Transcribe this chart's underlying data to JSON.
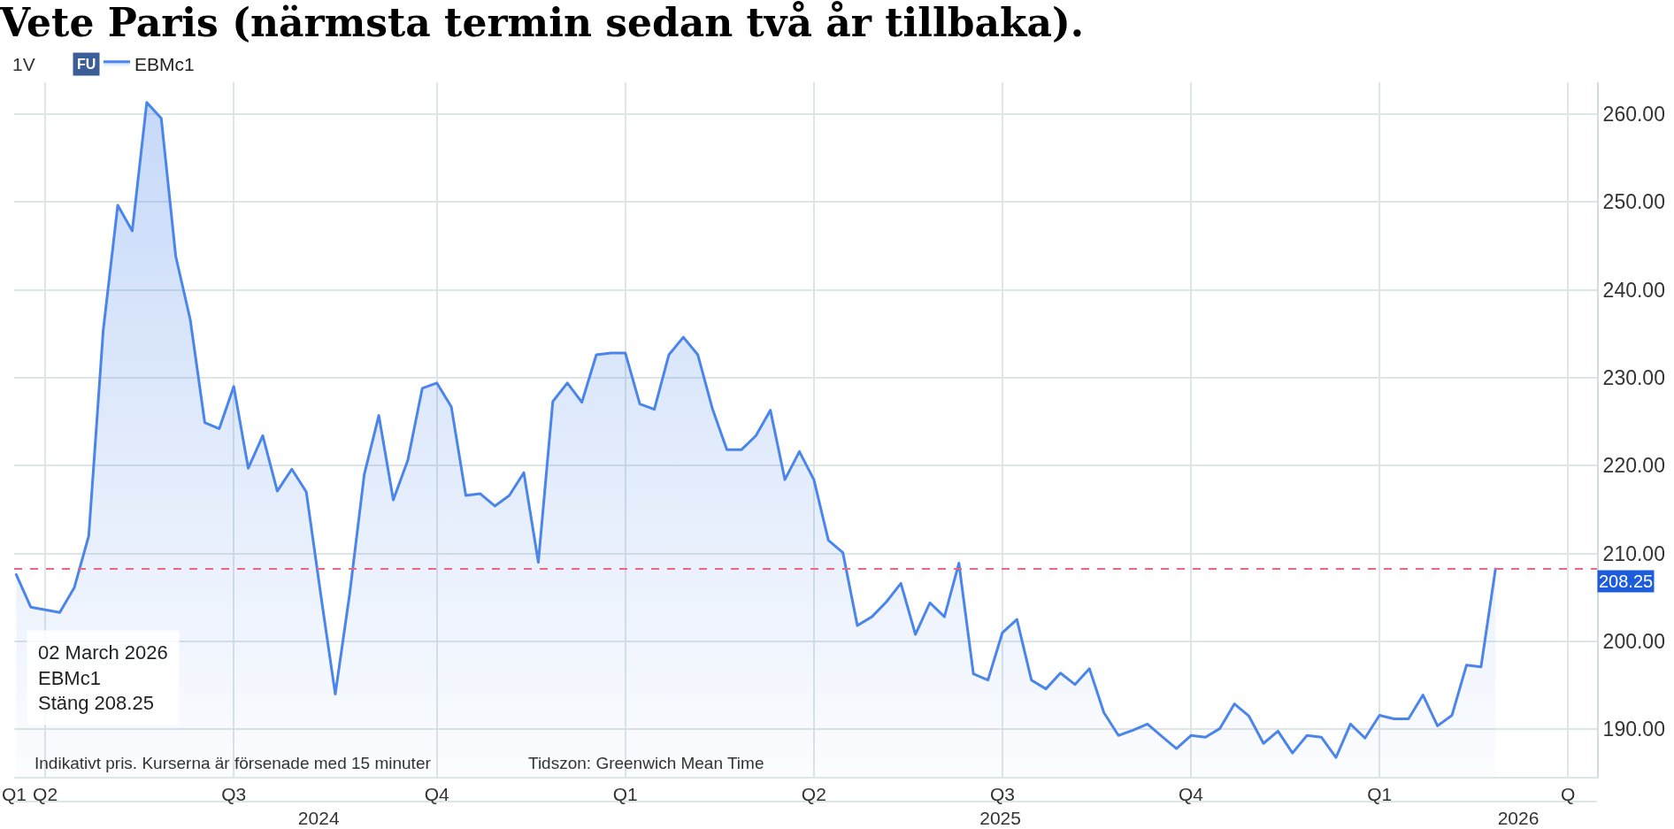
{
  "chart_data": {
    "type": "area",
    "title": "Vete Paris (närmsta termin sedan två år tillbaka).",
    "x": [
      "2024-03-18",
      "2024-03-25",
      "2024-04-01",
      "2024-04-08",
      "2024-04-15",
      "2024-04-22",
      "2024-04-29",
      "2024-05-06",
      "2024-05-13",
      "2024-05-20",
      "2024-05-27",
      "2024-06-03",
      "2024-06-10",
      "2024-06-17",
      "2024-06-24",
      "2024-07-01",
      "2024-07-08",
      "2024-07-15",
      "2024-07-22",
      "2024-07-29",
      "2024-08-05",
      "2024-08-12",
      "2024-08-19",
      "2024-08-26",
      "2024-09-02",
      "2024-09-09",
      "2024-09-16",
      "2024-09-23",
      "2024-09-30",
      "2024-10-07",
      "2024-10-14",
      "2024-10-21",
      "2024-10-28",
      "2024-11-04",
      "2024-11-11",
      "2024-11-18",
      "2024-11-25",
      "2024-12-02",
      "2024-12-09",
      "2024-12-16",
      "2024-12-23",
      "2024-12-30",
      "2025-01-06",
      "2025-01-13",
      "2025-01-20",
      "2025-01-27",
      "2025-02-03",
      "2025-02-10",
      "2025-02-17",
      "2025-02-24",
      "2025-03-03",
      "2025-03-10",
      "2025-03-17",
      "2025-03-24",
      "2025-03-31",
      "2025-04-07",
      "2025-04-14",
      "2025-04-21",
      "2025-04-28",
      "2025-05-05",
      "2025-05-12",
      "2025-05-19",
      "2025-05-26",
      "2025-06-02",
      "2025-06-09",
      "2025-06-16",
      "2025-06-23",
      "2025-06-30",
      "2025-07-07",
      "2025-07-14",
      "2025-07-21",
      "2025-07-28",
      "2025-08-04",
      "2025-08-11",
      "2025-08-18",
      "2025-08-25",
      "2025-09-01",
      "2025-09-08",
      "2025-09-15",
      "2025-09-22",
      "2025-09-29",
      "2025-10-06",
      "2025-10-13",
      "2025-10-20",
      "2025-10-27",
      "2025-11-03",
      "2025-11-10",
      "2025-11-17",
      "2025-11-24",
      "2025-12-01",
      "2025-12-08",
      "2025-12-15",
      "2025-12-22",
      "2025-12-29",
      "2026-01-05",
      "2026-01-12",
      "2026-01-19",
      "2026-01-26",
      "2026-02-02",
      "2026-02-09",
      "2026-02-16",
      "2026-02-23",
      "2026-03-02"
    ],
    "series": [
      {
        "name": "EBMc1",
        "color": "#4a85ec",
        "values": [
          207.6,
          203.9,
          203.6,
          203.3,
          206.1,
          212.0,
          235.4,
          249.6,
          246.7,
          261.3,
          259.5,
          243.8,
          236.6,
          224.9,
          224.2,
          229.0,
          219.7,
          223.4,
          217.1,
          219.6,
          217.0,
          205.3,
          194.0,
          205.5,
          219.0,
          225.7,
          216.1,
          220.6,
          228.8,
          229.4,
          226.7,
          216.6,
          216.8,
          215.4,
          216.6,
          219.2,
          209.0,
          227.3,
          229.4,
          227.2,
          232.6,
          232.8,
          232.8,
          227.0,
          226.4,
          232.6,
          234.6,
          232.6,
          226.5,
          221.8,
          221.8,
          223.4,
          226.3,
          218.4,
          221.6,
          218.4,
          211.5,
          210.1,
          201.8,
          202.8,
          204.5,
          206.6,
          200.8,
          204.4,
          202.8,
          208.9,
          196.3,
          195.6,
          201.0,
          202.5,
          195.6,
          194.6,
          196.4,
          195.1,
          196.9,
          191.9,
          189.3,
          189.9,
          190.6,
          189.2,
          187.8,
          189.3,
          189.1,
          190.1,
          192.9,
          191.5,
          188.4,
          189.8,
          187.3,
          189.3,
          189.1,
          186.8,
          190.6,
          189.0,
          191.6,
          191.2,
          191.2,
          193.9,
          190.4,
          191.6,
          197.3,
          197.1,
          208.25
        ]
      }
    ],
    "xlim": [
      "2024-03-17",
      "2026-04-20"
    ],
    "xticks": [
      {
        "value": "2024-03-17",
        "label": "Q1"
      },
      {
        "value": "2024-04-01",
        "label": "Q2"
      },
      {
        "value": "2024-07-01",
        "label": "Q3"
      },
      {
        "value": "2024-10-07",
        "label": "Q4"
      },
      {
        "value": "2025-01-06",
        "label": "Q1"
      },
      {
        "value": "2025-04-07",
        "label": "Q2"
      },
      {
        "value": "2025-07-07",
        "label": "Q3"
      },
      {
        "value": "2025-10-06",
        "label": "Q4"
      },
      {
        "value": "2026-01-05",
        "label": "Q1"
      },
      {
        "value": "2026-04-06",
        "label": "Q"
      }
    ],
    "x2lim": [
      "2024-03-17",
      "2026-04-20"
    ],
    "x2ticks": [
      {
        "value": "2024-08-11",
        "label": "2024"
      },
      {
        "value": "2025-07-06",
        "label": "2025"
      },
      {
        "value": "2026-03-13",
        "label": "2026"
      }
    ],
    "ylim": [
      184.6,
      263.6
    ],
    "yticks": [
      {
        "value": 190,
        "label": "190.00"
      },
      {
        "value": 200,
        "label": "200.00"
      },
      {
        "value": 210,
        "label": "210.00"
      },
      {
        "value": 220,
        "label": "220.00"
      },
      {
        "value": 230,
        "label": "230.00"
      },
      {
        "value": 240,
        "label": "240.00"
      },
      {
        "value": 250,
        "label": "250.00"
      },
      {
        "value": 260,
        "label": "260.00"
      }
    ],
    "ref_lines": [
      {
        "axis": "y",
        "value": 208.25,
        "label": "208.25",
        "color": "#f06582",
        "line_style": "dashed"
      }
    ],
    "annotations": [
      "1V",
      "FU",
      "02 March 2026\nEBMc1\nStäng 208.25",
      "Indikativt pris. Kurserna är försenade med 15 minuter",
      "Tidszon: Greenwich Mean Time"
    ],
    "grid": true,
    "legend": "top left",
    "marker": "none",
    "line_style": "solid"
  }
}
